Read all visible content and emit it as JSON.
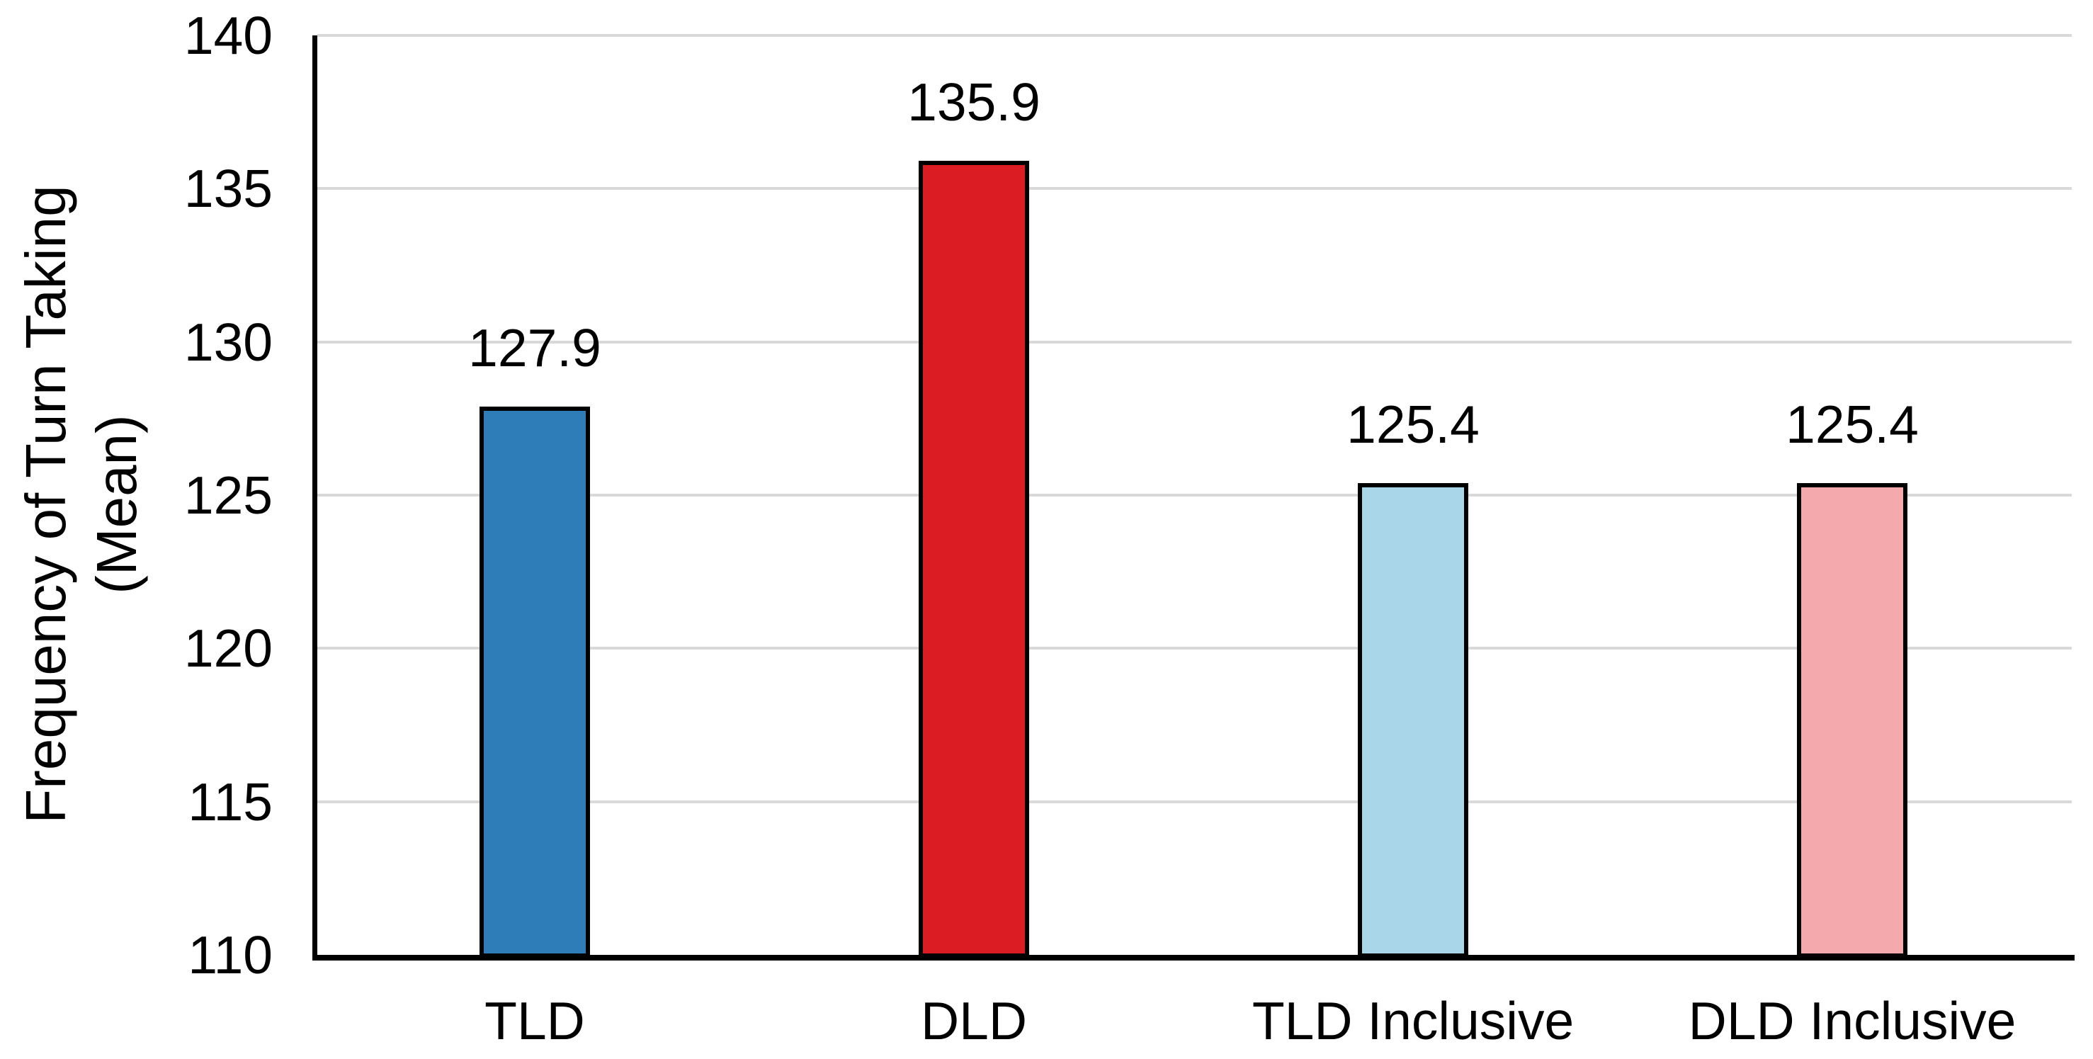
{
  "chart_data": {
    "type": "bar",
    "title": "",
    "categories": [
      "TLD",
      "DLD",
      "TLD Inclusive",
      "DLD Inclusive"
    ],
    "values": [
      127.9,
      135.9,
      125.4,
      125.4
    ],
    "data_labels": [
      "127.9",
      "135.9",
      "125.4",
      "125.4"
    ],
    "bar_colors": [
      "#2E7CB8",
      "#DB1C22",
      "#A9D6E8",
      "#F4A9AC"
    ],
    "bar_border_color": "#000000",
    "ylabel": "Frequency of Turn Taking (Mean)",
    "ylabel_lines": [
      "Frequency of Turn Taking",
      "(Mean)"
    ],
    "xlabel": "",
    "ylim": [
      110,
      140
    ],
    "yticks": [
      "110",
      "115",
      "120",
      "125",
      "130",
      "135",
      "140"
    ],
    "ytick_values": [
      110,
      115,
      120,
      125,
      130,
      135,
      140
    ],
    "grid": "horizontal",
    "gridline_color": "#D9D9D9",
    "axis_color": "#000000",
    "text_color": "#000000",
    "background_color": "#FFFFFF",
    "legend_position": "none"
  }
}
